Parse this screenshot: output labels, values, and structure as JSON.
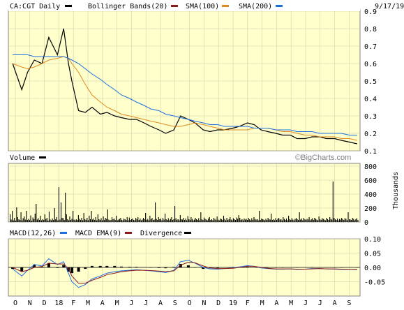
{
  "colors": {
    "background": "#ffffff",
    "plot_bg": "#ffffcc",
    "grid": "#c8c8a8",
    "price": "#000000",
    "bollinger": "#8b1a1a",
    "sma100": "#e08a1e",
    "sma200": "#1e6ee0",
    "macd": "#1e6ee0",
    "macd_ema": "#8b1a1a",
    "divergence": "#000000",
    "volume": "#000000"
  },
  "header": {
    "symbol": "CA:CGT Daily",
    "bollinger": "Bollinger Bands(20)",
    "sma100": "SMA(100)",
    "sma200": "SMA(200)",
    "date": "9/17/19"
  },
  "watermark": "©BigCharts.com",
  "volume_panel": {
    "label": "Volume",
    "axis_title": "Thousands"
  },
  "macd_panel": {
    "macd_label": "MACD(12,26)",
    "ema_label": "MACD EMA(9)",
    "div_label": "Divergence"
  },
  "x_labels": [
    "O",
    "N",
    "D",
    "18",
    "F",
    "M",
    "A",
    "M",
    "J",
    "J",
    "A",
    "S",
    "O",
    "N",
    "D",
    "19",
    "F",
    "M",
    "A",
    "M",
    "J",
    "J",
    "A",
    "S"
  ],
  "chart_data": [
    {
      "type": "line",
      "title": "CA:CGT Daily",
      "x": [
        "2017-10-01",
        "2017-10-20",
        "2017-11-01",
        "2017-11-15",
        "2017-12-01",
        "2017-12-15",
        "2018-01-02",
        "2018-01-15",
        "2018-01-25",
        "2018-02-01",
        "2018-02-15",
        "2018-03-01",
        "2018-03-15",
        "2018-04-01",
        "2018-04-15",
        "2018-05-01",
        "2018-05-15",
        "2018-06-01",
        "2018-06-15",
        "2018-07-01",
        "2018-07-15",
        "2018-08-01",
        "2018-08-15",
        "2018-09-01",
        "2018-09-15",
        "2018-10-01",
        "2018-10-15",
        "2018-11-01",
        "2018-11-15",
        "2018-12-01",
        "2018-12-15",
        "2019-01-02",
        "2019-01-15",
        "2019-02-01",
        "2019-02-15",
        "2019-03-01",
        "2019-03-15",
        "2019-04-01",
        "2019-04-15",
        "2019-05-01",
        "2019-05-15",
        "2019-06-01",
        "2019-06-15",
        "2019-07-01",
        "2019-07-15",
        "2019-08-01",
        "2019-08-15",
        "2019-09-01",
        "2019-09-17"
      ],
      "series": [
        {
          "name": "CA:CGT Daily",
          "values": [
            0.6,
            0.45,
            0.55,
            0.62,
            0.6,
            0.75,
            0.65,
            0.8,
            0.6,
            0.5,
            0.33,
            0.32,
            0.35,
            0.31,
            0.32,
            0.3,
            0.29,
            0.28,
            0.28,
            0.26,
            0.24,
            0.22,
            0.2,
            0.22,
            0.3,
            0.28,
            0.26,
            0.22,
            0.21,
            0.22,
            0.22,
            0.23,
            0.24,
            0.26,
            0.25,
            0.22,
            0.21,
            0.2,
            0.19,
            0.19,
            0.17,
            0.17,
            0.18,
            0.18,
            0.17,
            0.17,
            0.16,
            0.15,
            0.14
          ]
        },
        {
          "name": "SMA(100)",
          "values": [
            0.6,
            0.58,
            0.57,
            0.58,
            0.6,
            0.62,
            0.63,
            0.64,
            0.63,
            0.6,
            0.55,
            0.48,
            0.42,
            0.38,
            0.35,
            0.33,
            0.31,
            0.3,
            0.29,
            0.28,
            0.27,
            0.26,
            0.25,
            0.24,
            0.24,
            0.25,
            0.26,
            0.25,
            0.24,
            0.23,
            0.22,
            0.22,
            0.22,
            0.22,
            0.23,
            0.23,
            0.23,
            0.22,
            0.21,
            0.21,
            0.2,
            0.19,
            0.19,
            0.18,
            0.18,
            0.18,
            0.17,
            0.17,
            0.16
          ]
        },
        {
          "name": "SMA(200)",
          "values": [
            0.65,
            0.65,
            0.65,
            0.64,
            0.64,
            0.64,
            0.64,
            0.64,
            0.63,
            0.62,
            0.6,
            0.57,
            0.54,
            0.51,
            0.48,
            0.45,
            0.42,
            0.4,
            0.38,
            0.36,
            0.34,
            0.33,
            0.31,
            0.3,
            0.29,
            0.28,
            0.27,
            0.26,
            0.25,
            0.25,
            0.24,
            0.24,
            0.24,
            0.24,
            0.23,
            0.23,
            0.23,
            0.22,
            0.22,
            0.22,
            0.21,
            0.21,
            0.21,
            0.2,
            0.2,
            0.2,
            0.2,
            0.19,
            0.19
          ]
        }
      ],
      "ylim": [
        0.1,
        0.9
      ],
      "yticks": [
        0.1,
        0.2,
        0.3,
        0.4,
        0.5,
        0.6,
        0.7,
        0.8,
        0.9
      ]
    },
    {
      "type": "bar",
      "title": "Volume",
      "ylabel": "Thousands",
      "ylim": [
        0,
        800
      ],
      "yticks": [
        0,
        200,
        400,
        600,
        800
      ],
      "values": [
        110,
        35,
        160,
        25,
        60,
        20,
        210,
        70,
        40,
        30,
        140,
        25,
        55,
        80,
        35,
        160,
        30,
        45,
        28,
        95,
        20,
        65,
        40,
        120,
        260,
        35,
        55,
        30,
        90,
        25,
        40,
        30,
        110,
        45,
        60,
        20,
        150,
        35,
        25,
        50,
        30,
        200,
        40,
        70,
        25,
        500,
        35,
        280,
        60,
        55,
        30,
        420,
        110,
        40,
        25,
        80,
        30,
        45,
        160,
        35,
        25,
        40,
        30,
        100,
        45,
        30,
        60,
        25,
        130,
        40,
        30,
        60,
        25,
        90,
        40,
        160,
        35,
        50,
        30,
        70,
        25,
        110,
        40,
        30,
        55,
        25,
        80,
        30,
        60,
        45,
        180,
        35,
        25,
        30,
        70,
        40,
        50,
        30,
        90,
        25,
        35,
        45,
        60,
        30,
        25,
        50,
        40,
        30,
        70,
        25,
        65,
        30,
        40,
        50,
        30,
        25,
        60,
        40,
        70,
        30,
        50,
        25,
        35,
        60,
        40,
        130,
        30,
        45,
        25,
        90,
        40,
        60,
        30,
        35,
        280,
        45,
        30,
        70,
        40,
        50,
        25,
        60,
        35,
        120,
        40,
        30,
        55,
        25,
        45,
        70,
        30,
        40,
        230,
        55,
        30,
        40,
        25,
        100,
        40,
        35,
        60,
        30,
        50,
        25,
        85,
        40,
        30,
        70,
        45,
        25,
        35,
        60,
        40,
        30,
        55,
        25,
        140,
        40,
        30,
        65,
        45,
        35,
        25,
        50,
        70,
        30,
        40,
        25,
        60,
        45,
        30,
        80,
        35,
        25,
        50,
        40,
        30,
        90,
        45,
        25,
        60,
        30,
        40,
        70,
        35,
        25,
        55,
        40,
        30,
        65,
        45,
        100,
        60,
        30,
        40,
        25,
        50,
        35,
        45,
        30,
        60,
        40,
        25,
        55,
        30,
        70,
        45,
        35,
        40,
        25,
        160,
        30,
        50,
        40,
        35,
        25,
        45,
        30,
        60,
        40,
        35,
        120,
        30,
        40,
        25,
        55,
        30,
        45,
        60,
        35,
        40,
        25,
        70,
        45,
        30,
        50,
        25,
        90,
        40,
        30,
        55,
        35,
        25,
        45,
        60,
        40,
        30,
        140,
        35,
        50,
        25,
        60,
        40,
        30,
        45,
        35,
        70,
        25,
        40,
        55,
        30,
        60,
        45,
        35,
        25,
        80,
        40,
        30,
        55,
        45,
        35,
        25,
        60,
        40,
        30,
        70,
        45,
        35,
        580,
        60,
        40,
        30,
        50,
        25,
        45,
        35,
        60,
        40,
        30,
        55,
        45,
        25,
        140,
        40,
        35,
        30,
        60,
        45,
        25,
        40,
        55,
        30
      ]
    },
    {
      "type": "line",
      "title": "MACD(12,26)",
      "ylim": [
        -0.1,
        0.1
      ],
      "yticks": [
        -0.05,
        0.0,
        0.05,
        0.1
      ],
      "x": [
        "2017-10-01",
        "2017-10-20",
        "2017-11-01",
        "2017-11-15",
        "2017-12-01",
        "2017-12-15",
        "2018-01-02",
        "2018-01-15",
        "2018-01-25",
        "2018-02-01",
        "2018-02-15",
        "2018-03-01",
        "2018-03-15",
        "2018-04-01",
        "2018-04-15",
        "2018-05-01",
        "2018-05-15",
        "2018-06-01",
        "2018-06-15",
        "2018-07-01",
        "2018-07-15",
        "2018-08-01",
        "2018-08-15",
        "2018-09-01",
        "2018-09-15",
        "2018-10-01",
        "2018-10-15",
        "2018-11-01",
        "2018-11-15",
        "2018-12-01",
        "2018-12-15",
        "2019-01-02",
        "2019-01-15",
        "2019-02-01",
        "2019-02-15",
        "2019-03-01",
        "2019-03-15",
        "2019-04-01",
        "2019-04-15",
        "2019-05-01",
        "2019-05-15",
        "2019-06-01",
        "2019-06-15",
        "2019-07-01",
        "2019-07-15",
        "2019-08-01",
        "2019-08-15",
        "2019-09-01",
        "2019-09-17"
      ],
      "series": [
        {
          "name": "MACD(12,26)",
          "values": [
            -0.005,
            -0.03,
            -0.01,
            0.01,
            0.005,
            0.03,
            0.01,
            0.02,
            -0.02,
            -0.05,
            -0.07,
            -0.06,
            -0.04,
            -0.03,
            -0.02,
            -0.015,
            -0.012,
            -0.01,
            -0.008,
            -0.01,
            -0.012,
            -0.015,
            -0.018,
            -0.01,
            0.02,
            0.025,
            0.015,
            0.0,
            -0.005,
            -0.006,
            -0.004,
            -0.002,
            0.002,
            0.006,
            0.004,
            -0.002,
            -0.004,
            -0.006,
            -0.006,
            -0.005,
            -0.007,
            -0.006,
            -0.004,
            -0.004,
            -0.005,
            -0.006,
            -0.007,
            -0.007,
            -0.008
          ]
        },
        {
          "name": "MACD EMA(9)",
          "values": [
            0.0,
            -0.015,
            -0.01,
            0.0,
            0.003,
            0.015,
            0.012,
            0.012,
            -0.005,
            -0.03,
            -0.055,
            -0.055,
            -0.045,
            -0.035,
            -0.025,
            -0.02,
            -0.015,
            -0.012,
            -0.01,
            -0.01,
            -0.011,
            -0.013,
            -0.015,
            -0.012,
            0.008,
            0.018,
            0.016,
            0.005,
            -0.002,
            -0.004,
            -0.004,
            -0.003,
            0.0,
            0.004,
            0.004,
            0.0,
            -0.003,
            -0.005,
            -0.005,
            -0.005,
            -0.006,
            -0.006,
            -0.005,
            -0.004,
            -0.005,
            -0.005,
            -0.006,
            -0.007,
            -0.007
          ]
        }
      ]
    }
  ]
}
